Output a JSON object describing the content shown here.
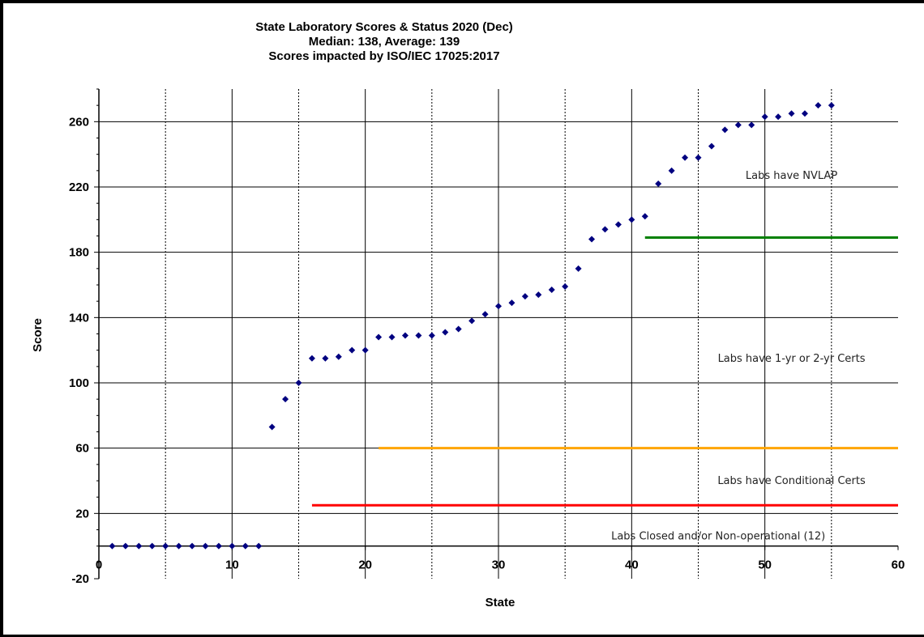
{
  "chart_data": {
    "type": "scatter",
    "title": [
      "State Laboratory Scores & Status 2020 (Dec)",
      "Median: 138, Average: 139",
      "Scores impacted by ISO/IEC 17025:2017"
    ],
    "xlabel": "State",
    "ylabel": "Score",
    "xlim": [
      0,
      60
    ],
    "ylim": [
      -20,
      280
    ],
    "xticks": [
      "0",
      "10",
      "20",
      "30",
      "40",
      "50",
      "60"
    ],
    "yticks": [
      "-20",
      "20",
      "60",
      "100",
      "140",
      "180",
      "220",
      "260"
    ],
    "grid": true,
    "marker_color": "#000080",
    "points": [
      [
        1,
        0
      ],
      [
        2,
        0
      ],
      [
        3,
        0
      ],
      [
        4,
        0
      ],
      [
        5,
        0
      ],
      [
        6,
        0
      ],
      [
        7,
        0
      ],
      [
        8,
        0
      ],
      [
        9,
        0
      ],
      [
        10,
        0
      ],
      [
        11,
        0
      ],
      [
        12,
        0
      ],
      [
        13,
        73
      ],
      [
        14,
        90
      ],
      [
        15,
        100
      ],
      [
        16,
        115
      ],
      [
        17,
        115
      ],
      [
        18,
        116
      ],
      [
        19,
        120
      ],
      [
        20,
        120
      ],
      [
        21,
        128
      ],
      [
        22,
        128
      ],
      [
        23,
        129
      ],
      [
        24,
        129
      ],
      [
        25,
        129
      ],
      [
        26,
        131
      ],
      [
        27,
        133
      ],
      [
        28,
        138
      ],
      [
        29,
        142
      ],
      [
        30,
        147
      ],
      [
        31,
        149
      ],
      [
        32,
        153
      ],
      [
        33,
        154
      ],
      [
        34,
        157
      ],
      [
        35,
        159
      ],
      [
        36,
        170
      ],
      [
        37,
        188
      ],
      [
        38,
        194
      ],
      [
        39,
        197
      ],
      [
        40,
        200
      ],
      [
        41,
        202
      ],
      [
        42,
        222
      ],
      [
        43,
        230
      ],
      [
        44,
        238
      ],
      [
        45,
        238
      ],
      [
        46,
        245
      ],
      [
        47,
        255
      ],
      [
        48,
        258
      ],
      [
        49,
        258
      ],
      [
        50,
        263
      ],
      [
        51,
        263
      ],
      [
        52,
        265
      ],
      [
        53,
        265
      ],
      [
        54,
        270
      ],
      [
        55,
        270
      ]
    ],
    "threshold_lines": [
      {
        "y": 189,
        "x_start": 41,
        "x_end": 60,
        "color": "#008000"
      },
      {
        "y": 60,
        "x_start": 21,
        "x_end": 60,
        "color": "#FFA500"
      },
      {
        "y": 25,
        "x_start": 16,
        "x_end": 60,
        "color": "#FF0000"
      }
    ],
    "annotations": [
      {
        "text": "Labs have NVLAP",
        "x": 52,
        "y": 225
      },
      {
        "text": "Labs have 1-yr or 2-yr Certs",
        "x": 52,
        "y": 113
      },
      {
        "text": "Labs have Conditional Certs",
        "x": 52,
        "y": 38
      },
      {
        "text": "Labs Closed and/or Non-operational (12)",
        "x": 46.5,
        "y": 4
      }
    ]
  }
}
